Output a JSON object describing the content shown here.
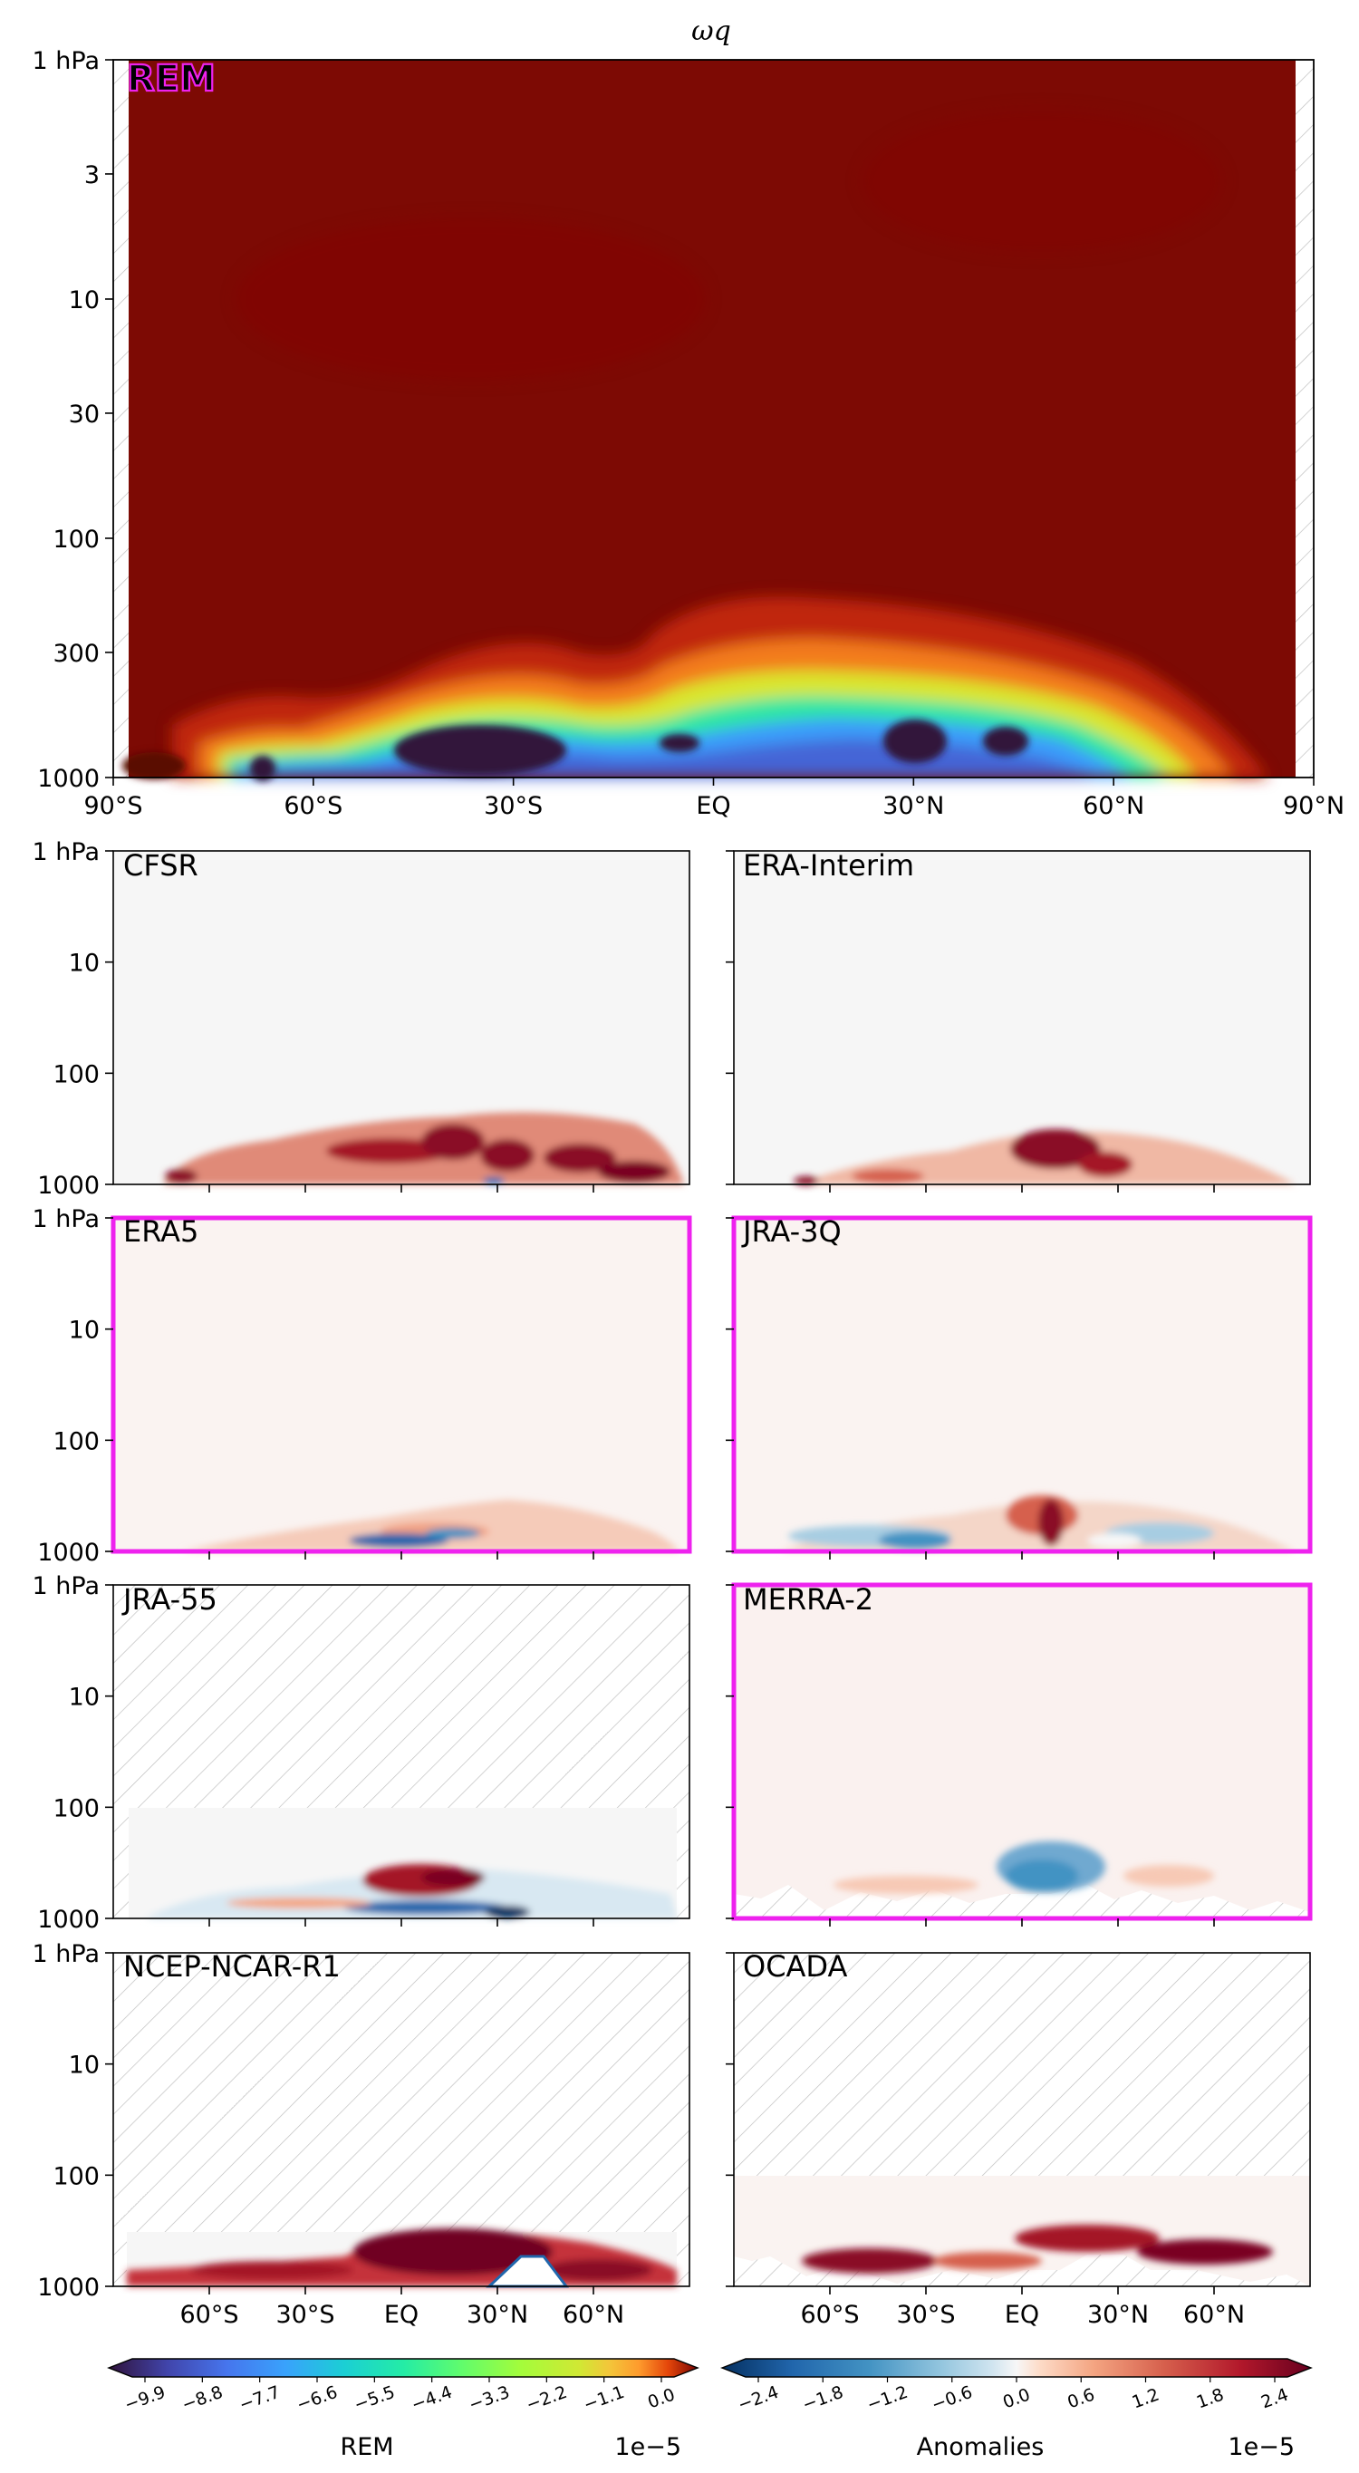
{
  "figure": {
    "title": "ωq",
    "pressure_ticks_top": [
      "1 hPa",
      "3",
      "10",
      "30",
      "100",
      "300",
      "1000"
    ],
    "pressure_ticks_small": [
      "1 hPa",
      "10",
      "100",
      "1000"
    ],
    "lat_ticks_top": [
      "90°S",
      "60°S",
      "30°S",
      "EQ",
      "30°N",
      "60°N",
      "90°N"
    ],
    "lat_ticks_bottom": [
      "60°S",
      "30°S",
      "EQ",
      "30°N",
      "60°N"
    ]
  },
  "chart_data": [
    {
      "type": "heatmap",
      "panel": "REM",
      "label": "REM",
      "highlight": false,
      "x_axis": "latitude",
      "xlim": [
        -90,
        90
      ],
      "y_axis": "pressure (hPa), log scale, inverted",
      "ylim": [
        1000,
        1
      ],
      "colormap": "turbo",
      "value_summary": "Near 0 (dark red) across the stratosphere and upper troposphere; strongly negative (dark blue/purple, about -9.9e-5) in the lower troposphere near 45–30°S and 20–35°N, with a band of blue to cyan between 300 and 1000 hPa.",
      "minima": [
        {
          "lat": -35,
          "p": 700,
          "value": -9.9e-05
        },
        {
          "lat": 25,
          "p": 700,
          "value": -9.9e-05
        },
        {
          "lat": 50,
          "p": 700,
          "value": -8.8e-05
        }
      ]
    },
    {
      "type": "heatmap",
      "panel": "CFSR",
      "label": "CFSR",
      "highlight": false,
      "hatch_above_hPa": null,
      "value_summary": "Anomalies near zero aloft; positive (red) near 400–1000 hPa across 50°S–70°N."
    },
    {
      "type": "heatmap",
      "panel": "ERA-Interim",
      "label": "ERA-Interim",
      "highlight": false,
      "hatch_above_hPa": null,
      "value_summary": "Anomalies near zero aloft; positive (red) near 400–1000 hPa, strongest around EQ–30°N."
    },
    {
      "type": "heatmap",
      "panel": "ERA5",
      "label": "ERA5",
      "highlight": true,
      "hatch_above_hPa": null,
      "value_summary": "Small anomalies; weak red near 500–1000 hPa around EQ, weak blue near 30°S."
    },
    {
      "type": "heatmap",
      "panel": "JRA-3Q",
      "label": "JRA-3Q",
      "highlight": true,
      "hatch_above_hPa": null,
      "value_summary": "Weak blue in lower troposphere across 60°S–EQ, red near EQ–30°N at 300–1000 hPa."
    },
    {
      "type": "heatmap",
      "panel": "JRA-55",
      "label": "JRA-55",
      "highlight": false,
      "hatch_above_hPa": 100,
      "value_summary": "Hatched (no data) above 100 hPa; red near EQ–30°N at 500 hPa, blue near surface."
    },
    {
      "type": "heatmap",
      "panel": "MERRA-2",
      "label": "MERRA-2",
      "highlight": true,
      "hatch_above_hPa": null,
      "value_summary": "Near zero aloft; blue near EQ–30°N at 400–1000 hPa; hatched near surface."
    },
    {
      "type": "heatmap",
      "panel": "NCEP-NCAR-R1",
      "label": "NCEP-NCAR-R1",
      "highlight": false,
      "hatch_above_hPa": 300,
      "value_summary": "Hatched above 300 hPa; strong red positive anomalies 30°S–50°N near 300–1000 hPa."
    },
    {
      "type": "heatmap",
      "panel": "OCADA",
      "label": "OCADA",
      "highlight": false,
      "hatch_above_hPa": 100,
      "value_summary": "Hatched above 100 hPa; red positive anomalies 45°S–80°N near 500–1000 hPa."
    }
  ],
  "colorbars": {
    "rem": {
      "label": "REM",
      "scale": "1e−5",
      "ticks": [
        "−9.9",
        "−8.8",
        "−7.7",
        "−6.6",
        "−5.5",
        "−4.4",
        "−3.3",
        "−2.2",
        "−1.1",
        "0.0"
      ]
    },
    "anom": {
      "label": "Anomalies",
      "scale": "1e−5",
      "ticks": [
        "−2.4",
        "−1.8",
        "−1.2",
        "−0.6",
        "0.0",
        "0.6",
        "1.2",
        "1.8",
        "2.4"
      ]
    }
  },
  "colors": {
    "highlight_frame": "#ee22ee",
    "hatch": "#c0c0c0",
    "rem_label": "#ee22ee"
  }
}
